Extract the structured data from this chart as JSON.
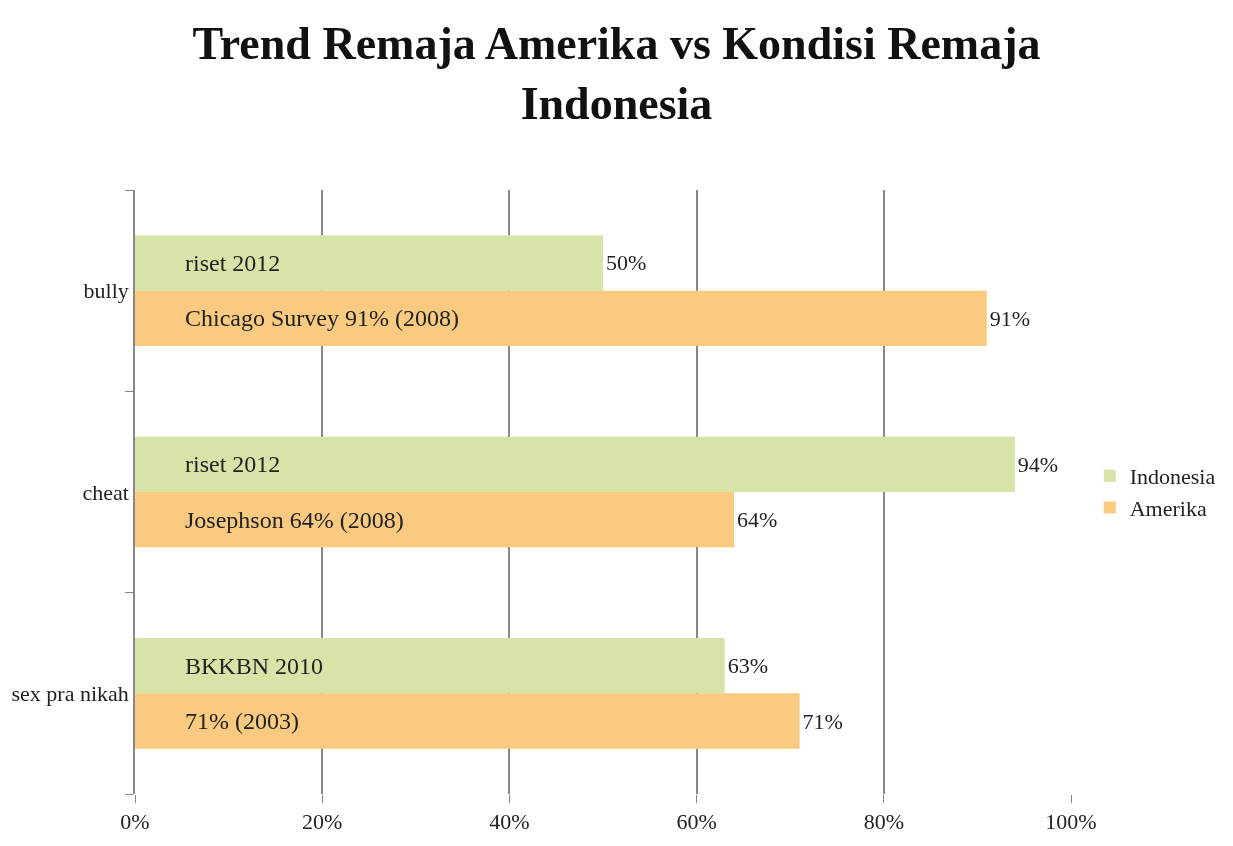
{
  "chart_data": {
    "type": "bar",
    "orientation": "horizontal",
    "title": "Trend Remaja Amerika vs Kondisi Remaja Indonesia",
    "categories": [
      "bully",
      "cheat",
      "sex pra nikah"
    ],
    "series": [
      {
        "name": "Indonesia",
        "color": "#d7e4a8",
        "values": [
          50,
          94,
          63
        ],
        "value_labels": [
          "50%",
          "94%",
          "63%"
        ]
      },
      {
        "name": "Amerika",
        "color": "#f9ca80",
        "values": [
          91,
          64,
          71
        ],
        "value_labels": [
          "91%",
          "64%",
          "71%"
        ]
      }
    ],
    "xlim": [
      0,
      100
    ],
    "xticks": [
      {
        "value": 0,
        "label": "0%"
      },
      {
        "value": 20,
        "label": "20%"
      },
      {
        "value": 40,
        "label": "40%"
      },
      {
        "value": 60,
        "label": "60%"
      },
      {
        "value": 80,
        "label": "80%"
      },
      {
        "value": 100,
        "label": "100%"
      }
    ],
    "grid": "x",
    "legend": "right",
    "annotations": [
      "riset 2012",
      "Chicago Survey 91% (2008)",
      "riset 2012",
      "Josephson 64% (2008)",
      "BKKBN 2010",
      "71% (2003)"
    ]
  }
}
